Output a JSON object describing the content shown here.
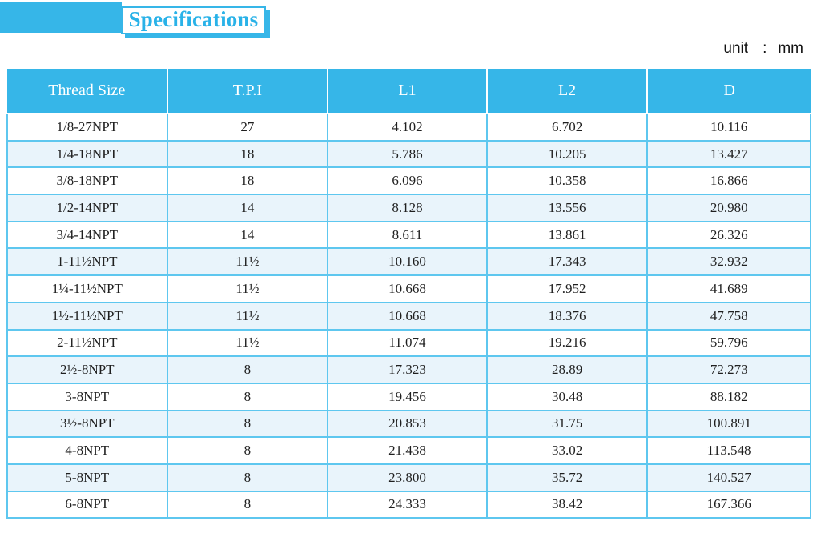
{
  "page": {
    "title": "Specifications",
    "unit_label": "unit",
    "unit_separator": ":",
    "unit_value": "mm"
  },
  "colors": {
    "accent": "#36b6e8",
    "border": "#5ec7ef",
    "alt_row": "#e9f4fb",
    "title_text": "#29b2e8",
    "text": "#1f1f1f"
  },
  "table": {
    "columns": [
      "Thread Size",
      "T.P.I",
      "L1",
      "L2",
      "D"
    ],
    "column_widths_percent": [
      19.9,
      20.0,
      19.8,
      20.0,
      20.3
    ],
    "rows": [
      [
        "1/8-27NPT",
        "27",
        "4.102",
        "6.702",
        "10.116"
      ],
      [
        "1/4-18NPT",
        "18",
        "5.786",
        "10.205",
        "13.427"
      ],
      [
        "3/8-18NPT",
        "18",
        "6.096",
        "10.358",
        "16.866"
      ],
      [
        "1/2-14NPT",
        "14",
        "8.128",
        "13.556",
        "20.980"
      ],
      [
        "3/4-14NPT",
        "14",
        "8.611",
        "13.861",
        "26.326"
      ],
      [
        "1-11½NPT",
        "11½",
        "10.160",
        "17.343",
        "32.932"
      ],
      [
        "1¼-11½NPT",
        "11½",
        "10.668",
        "17.952",
        "41.689"
      ],
      [
        "1½-11½NPT",
        "11½",
        "10.668",
        "18.376",
        "47.758"
      ],
      [
        "2-11½NPT",
        "11½",
        "11.074",
        "19.216",
        "59.796"
      ],
      [
        "2½-8NPT",
        "8",
        "17.323",
        "28.89",
        "72.273"
      ],
      [
        "3-8NPT",
        "8",
        "19.456",
        "30.48",
        "88.182"
      ],
      [
        "3½-8NPT",
        "8",
        "20.853",
        "31.75",
        "100.891"
      ],
      [
        "4-8NPT",
        "8",
        "21.438",
        "33.02",
        "113.548"
      ],
      [
        "5-8NPT",
        "8",
        "23.800",
        "35.72",
        "140.527"
      ],
      [
        "6-8NPT",
        "8",
        "24.333",
        "38.42",
        "167.366"
      ]
    ]
  }
}
